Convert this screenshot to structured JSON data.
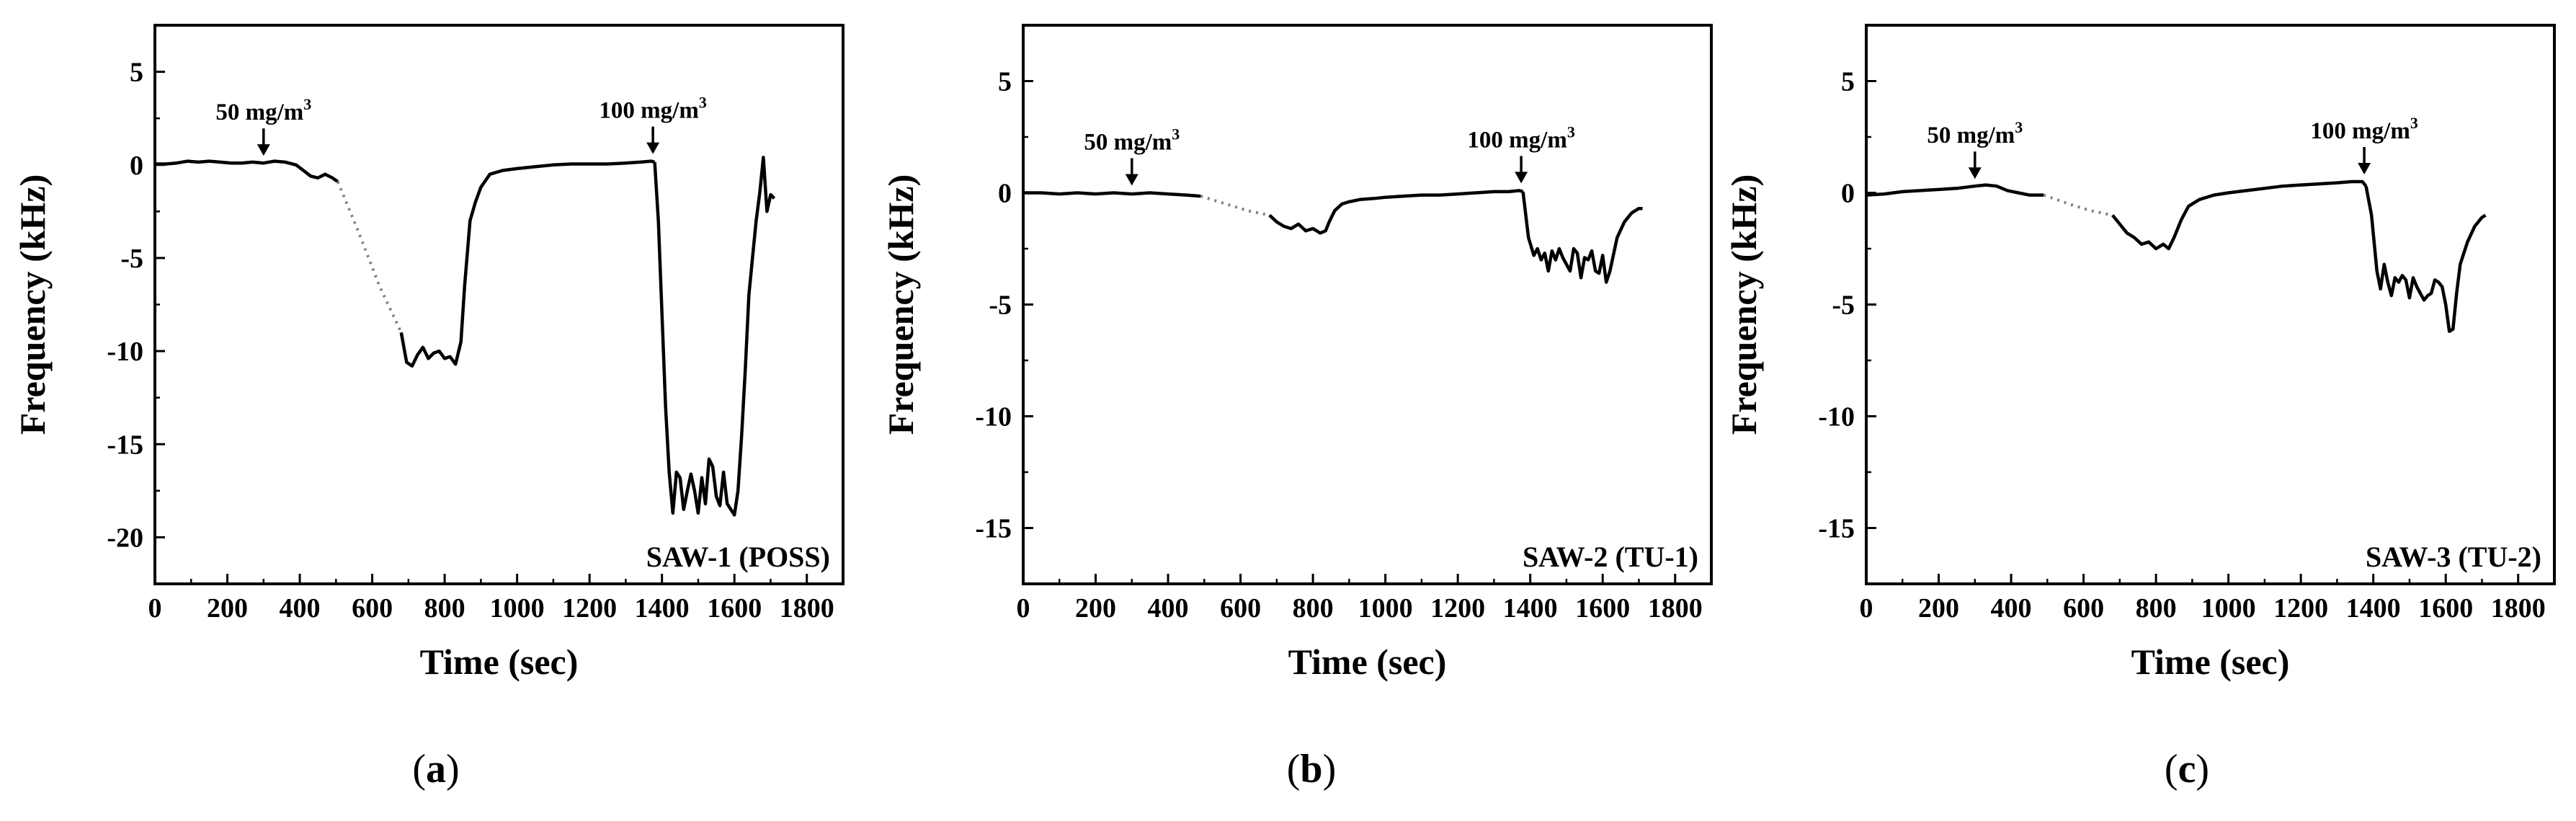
{
  "figure": {
    "panel_labels": [
      {
        "open": "(",
        "letter": "a",
        "close": ")"
      },
      {
        "open": "(",
        "letter": "b",
        "close": ")"
      },
      {
        "open": "(",
        "letter": "c",
        "close": ")"
      }
    ]
  },
  "chart_data": [
    {
      "type": "line",
      "panel": "(a)",
      "tag": "SAW-1 (POSS)",
      "xlabel": "Time (sec)",
      "ylabel": "Frequency (kHz)",
      "xlim": [
        0,
        1900
      ],
      "ylim": [
        -22.5,
        7.5
      ],
      "xticks": [
        0,
        200,
        400,
        600,
        800,
        1000,
        1200,
        1400,
        1600,
        1800
      ],
      "yticks": [
        5,
        0,
        -5,
        -10,
        -15,
        -20
      ],
      "annotations": [
        {
          "text": "50 mg/m",
          "sup": "3",
          "x": 300,
          "y": 0.1
        },
        {
          "text": "100 mg/m",
          "sup": "3",
          "x": 1375,
          "y": 0.2
        }
      ],
      "series": [
        {
          "name": "signal",
          "style": "solid",
          "x": [
            0,
            30,
            60,
            90,
            120,
            150,
            180,
            210,
            240,
            270,
            300,
            330,
            360,
            390,
            410,
            430,
            450,
            470,
            490,
            505
          ],
          "y": [
            0.05,
            0.05,
            0.1,
            0.2,
            0.15,
            0.2,
            0.15,
            0.1,
            0.1,
            0.15,
            0.1,
            0.2,
            0.15,
            0.0,
            -0.3,
            -0.6,
            -0.7,
            -0.5,
            -0.7,
            -0.9
          ]
        },
        {
          "name": "gap",
          "style": "dotted",
          "x": [
            505,
            560,
            620,
            680
          ],
          "y": [
            -0.9,
            -3.5,
            -6.5,
            -9.0
          ]
        },
        {
          "name": "signal",
          "style": "solid",
          "x": [
            680,
            695,
            710,
            725,
            740,
            755,
            770,
            785,
            800,
            815,
            830,
            845,
            855,
            870,
            885,
            900,
            925,
            960,
            1000,
            1050,
            1100,
            1150,
            1200,
            1250,
            1300,
            1340,
            1370,
            1380
          ],
          "y": [
            -9.0,
            -10.6,
            -10.8,
            -10.2,
            -9.8,
            -10.4,
            -10.1,
            -10.0,
            -10.4,
            -10.3,
            -10.7,
            -9.5,
            -6.5,
            -3.0,
            -2.0,
            -1.2,
            -0.5,
            -0.3,
            -0.2,
            -0.1,
            0.0,
            0.05,
            0.05,
            0.05,
            0.1,
            0.15,
            0.2,
            0.15
          ]
        },
        {
          "name": "signal",
          "style": "solid",
          "x": [
            1380,
            1390,
            1400,
            1410,
            1420,
            1430,
            1440,
            1450,
            1460,
            1470,
            1480,
            1490,
            1500,
            1510,
            1520,
            1530,
            1540,
            1550,
            1560,
            1570,
            1580,
            1590,
            1600,
            1610,
            1620,
            1630,
            1640,
            1650,
            1660,
            1670,
            1680,
            1690,
            1700,
            1710
          ],
          "y": [
            0.15,
            -3.0,
            -8.0,
            -13.0,
            -16.5,
            -18.7,
            -16.5,
            -16.8,
            -18.5,
            -17.5,
            -16.6,
            -17.5,
            -18.7,
            -16.8,
            -18.2,
            -15.8,
            -16.2,
            -17.8,
            -18.3,
            -16.5,
            -18.2,
            -18.5,
            -18.8,
            -17.5,
            -14.5,
            -11.0,
            -7.0,
            -5.0,
            -3.0,
            -1.5,
            0.4,
            -2.5,
            -1.6,
            -1.8
          ]
        }
      ]
    },
    {
      "type": "line",
      "panel": "(b)",
      "tag": "SAW-2 (TU-1)",
      "xlabel": "Time (sec)",
      "ylabel": "Frequency (kHz)",
      "xlim": [
        0,
        1900
      ],
      "ylim": [
        -17.5,
        7.5
      ],
      "xticks": [
        0,
        200,
        400,
        600,
        800,
        1000,
        1200,
        1400,
        1600,
        1800
      ],
      "yticks": [
        5,
        0,
        -5,
        -10,
        -15
      ],
      "annotations": [
        {
          "text": "50 mg/m",
          "sup": "3",
          "x": 300,
          "y": 0.0
        },
        {
          "text": "100 mg/m",
          "sup": "3",
          "x": 1375,
          "y": 0.1
        }
      ],
      "series": [
        {
          "name": "signal",
          "style": "solid",
          "x": [
            0,
            50,
            100,
            150,
            200,
            250,
            300,
            350,
            400,
            450,
            490
          ],
          "y": [
            0.0,
            0.0,
            -0.05,
            0.0,
            -0.05,
            0.0,
            -0.05,
            0.0,
            -0.05,
            -0.1,
            -0.15
          ]
        },
        {
          "name": "gap",
          "style": "dotted",
          "x": [
            490,
            560,
            620,
            680
          ],
          "y": [
            -0.15,
            -0.5,
            -0.8,
            -1.0
          ]
        },
        {
          "name": "signal",
          "style": "solid",
          "x": [
            680,
            700,
            720,
            740,
            760,
            780,
            800,
            820,
            835,
            845,
            860,
            880,
            900,
            930,
            970,
            1000,
            1050,
            1100,
            1150,
            1200,
            1250,
            1300,
            1340,
            1370,
            1380
          ],
          "y": [
            -1.0,
            -1.3,
            -1.5,
            -1.6,
            -1.4,
            -1.7,
            -1.6,
            -1.8,
            -1.7,
            -1.3,
            -0.8,
            -0.5,
            -0.4,
            -0.3,
            -0.25,
            -0.2,
            -0.15,
            -0.1,
            -0.1,
            -0.05,
            0.0,
            0.05,
            0.05,
            0.1,
            0.05
          ]
        },
        {
          "name": "signal",
          "style": "solid",
          "x": [
            1380,
            1395,
            1410,
            1420,
            1430,
            1440,
            1450,
            1460,
            1470,
            1480,
            1490,
            1500,
            1510,
            1520,
            1530,
            1540,
            1550,
            1560,
            1570,
            1580,
            1590,
            1600,
            1610,
            1620,
            1640,
            1660,
            1680,
            1700,
            1710
          ],
          "y": [
            0.05,
            -2.0,
            -2.8,
            -2.5,
            -3.0,
            -2.7,
            -3.5,
            -2.6,
            -3.0,
            -2.5,
            -2.9,
            -3.2,
            -3.5,
            -2.5,
            -2.7,
            -3.8,
            -2.9,
            -3.0,
            -2.6,
            -3.5,
            -3.6,
            -2.8,
            -4.0,
            -3.5,
            -2.0,
            -1.3,
            -0.9,
            -0.7,
            -0.7
          ]
        }
      ]
    },
    {
      "type": "line",
      "panel": "(c)",
      "tag": "SAW-3 (TU-2)",
      "xlabel": "Time (sec)",
      "ylabel": "Frequency (kHz)",
      "xlim": [
        0,
        1900
      ],
      "ylim": [
        -17.5,
        7.5
      ],
      "xticks": [
        0,
        200,
        400,
        600,
        800,
        1000,
        1200,
        1400,
        1600,
        1800
      ],
      "yticks": [
        5,
        0,
        -5,
        -10,
        -15
      ],
      "annotations": [
        {
          "text": "50 mg/m",
          "sup": "3",
          "x": 300,
          "y": 0.3
        },
        {
          "text": "100 mg/m",
          "sup": "3",
          "x": 1375,
          "y": 0.5
        }
      ],
      "series": [
        {
          "name": "signal",
          "style": "solid",
          "x": [
            0,
            50,
            100,
            150,
            200,
            250,
            300,
            330,
            360,
            390,
            420,
            450,
            490
          ],
          "y": [
            -0.1,
            -0.05,
            0.05,
            0.1,
            0.15,
            0.2,
            0.3,
            0.35,
            0.3,
            0.1,
            0.0,
            -0.1,
            -0.1
          ]
        },
        {
          "name": "gap",
          "style": "dotted",
          "x": [
            490,
            560,
            620,
            680
          ],
          "y": [
            -0.1,
            -0.5,
            -0.8,
            -1.0
          ]
        },
        {
          "name": "signal",
          "style": "solid",
          "x": [
            680,
            700,
            720,
            740,
            760,
            780,
            800,
            820,
            835,
            850,
            870,
            890,
            920,
            960,
            1000,
            1050,
            1100,
            1150,
            1200,
            1250,
            1300,
            1340,
            1370,
            1380
          ],
          "y": [
            -1.0,
            -1.4,
            -1.8,
            -2.0,
            -2.3,
            -2.2,
            -2.5,
            -2.3,
            -2.5,
            -2.0,
            -1.2,
            -0.6,
            -0.3,
            -0.1,
            0.0,
            0.1,
            0.2,
            0.3,
            0.35,
            0.4,
            0.45,
            0.5,
            0.5,
            0.3
          ]
        },
        {
          "name": "signal",
          "style": "solid",
          "x": [
            1380,
            1395,
            1410,
            1420,
            1430,
            1440,
            1450,
            1460,
            1470,
            1480,
            1490,
            1500,
            1510,
            1520,
            1530,
            1540,
            1550,
            1560,
            1570,
            1580,
            1590,
            1600,
            1610,
            1620,
            1630,
            1640,
            1660,
            1680,
            1700,
            1710
          ],
          "y": [
            0.3,
            -1.0,
            -3.5,
            -4.3,
            -3.2,
            -4.0,
            -4.6,
            -3.8,
            -4.0,
            -3.7,
            -3.9,
            -4.7,
            -3.8,
            -4.2,
            -4.5,
            -4.8,
            -4.6,
            -4.5,
            -3.9,
            -4.0,
            -4.2,
            -5.0,
            -6.2,
            -6.1,
            -4.5,
            -3.2,
            -2.2,
            -1.5,
            -1.1,
            -1.0
          ]
        }
      ]
    }
  ]
}
